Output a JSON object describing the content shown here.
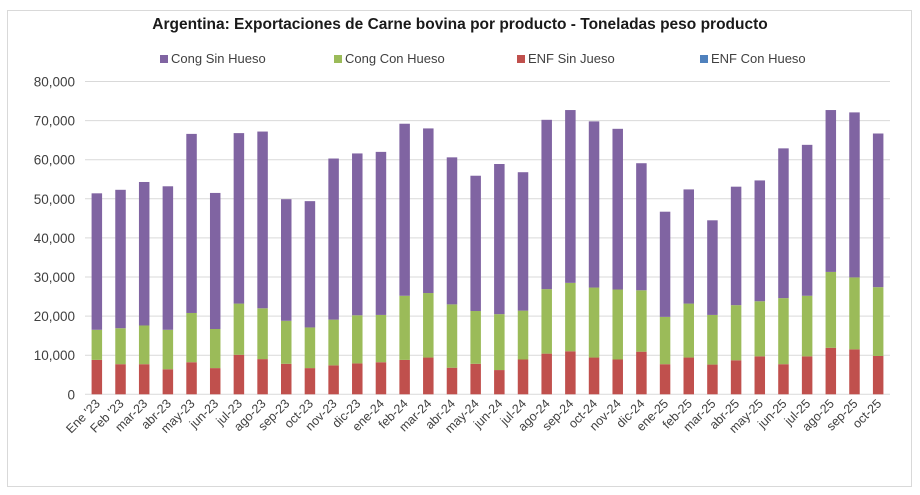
{
  "chart_data": {
    "type": "bar",
    "stacked": true,
    "title": "Argentina: Exportaciones de Carne bovina por producto - Toneladas peso producto",
    "xlabel": "",
    "ylabel": "",
    "ylim": [
      0,
      80000
    ],
    "yticks": [
      0,
      10000,
      20000,
      30000,
      40000,
      50000,
      60000,
      70000,
      80000
    ],
    "ytick_labels": [
      "0",
      "10,000",
      "20,000",
      "30,000",
      "40,000",
      "50,000",
      "60,000",
      "70,000",
      "80,000"
    ],
    "grid": true,
    "legend_position": "top",
    "categories": [
      "Ene '23",
      "Feb '23",
      "mar-23",
      "abr-23",
      "may-23",
      "jun-23",
      "jul-23",
      "ago-23",
      "sep-23",
      "oct-23",
      "nov-23",
      "dic-23",
      "ene-24",
      "feb-24",
      "mar-24",
      "abr-24",
      "may-24",
      "jun-24",
      "jul-24",
      "ago-24",
      "sep-24",
      "oct-24",
      "nov-24",
      "dic-24",
      "ene-25",
      "feb-25",
      "mar-25",
      "abr-25",
      "may-25",
      "jun-25",
      "jul-25",
      "ago-25",
      "sep-25",
      "oct-25"
    ],
    "series": [
      {
        "name": "ENF Sin Jueso",
        "color": "#c0504d",
        "values": [
          8800,
          7700,
          7700,
          6400,
          8200,
          6700,
          10100,
          9000,
          7800,
          6700,
          7400,
          7900,
          8200,
          8800,
          9400,
          6800,
          7800,
          6200,
          8900,
          10400,
          11000,
          9400,
          8900,
          10900,
          7700,
          9400,
          7600,
          8700,
          9700,
          7700,
          9700,
          11900,
          11500,
          9800
        ]
      },
      {
        "name": "ENF Con Hueso",
        "color": "#4f81bd",
        "values": [
          0,
          0,
          0,
          0,
          0,
          0,
          0,
          0,
          0,
          0,
          0,
          0,
          0,
          0,
          0,
          0,
          0,
          0,
          0,
          0,
          0,
          0,
          0,
          0,
          0,
          0,
          0,
          0,
          0,
          0,
          0,
          0,
          0,
          0
        ]
      },
      {
        "name": "Cong Con Hueso",
        "color": "#9bbb59",
        "values": [
          7700,
          9200,
          9900,
          10100,
          12600,
          10000,
          13100,
          13000,
          11000,
          10400,
          11700,
          12300,
          12100,
          16400,
          16500,
          16200,
          13500,
          14300,
          12500,
          16500,
          17500,
          17900,
          17900,
          15700,
          12100,
          13800,
          12700,
          14100,
          14100,
          16900,
          15500,
          19400,
          18400,
          17600
        ]
      },
      {
        "name": "Cong Sin Hueso",
        "color": "#8064a2",
        "values": [
          34900,
          35400,
          36700,
          36700,
          45800,
          34800,
          43600,
          45200,
          31100,
          32300,
          41200,
          41400,
          41700,
          44000,
          42100,
          37600,
          34600,
          38400,
          35400,
          43300,
          44200,
          42500,
          41100,
          32500,
          26900,
          29200,
          24200,
          30300,
          30900,
          38300,
          38600,
          41400,
          42200,
          39300
        ]
      }
    ],
    "legend": [
      {
        "label": "Cong Sin Hueso",
        "color": "#8064a2"
      },
      {
        "label": "Cong Con Hueso",
        "color": "#9bbb59"
      },
      {
        "label": "ENF Sin Jueso",
        "color": "#c0504d"
      },
      {
        "label": "ENF Con Hueso",
        "color": "#4f81bd"
      }
    ]
  }
}
